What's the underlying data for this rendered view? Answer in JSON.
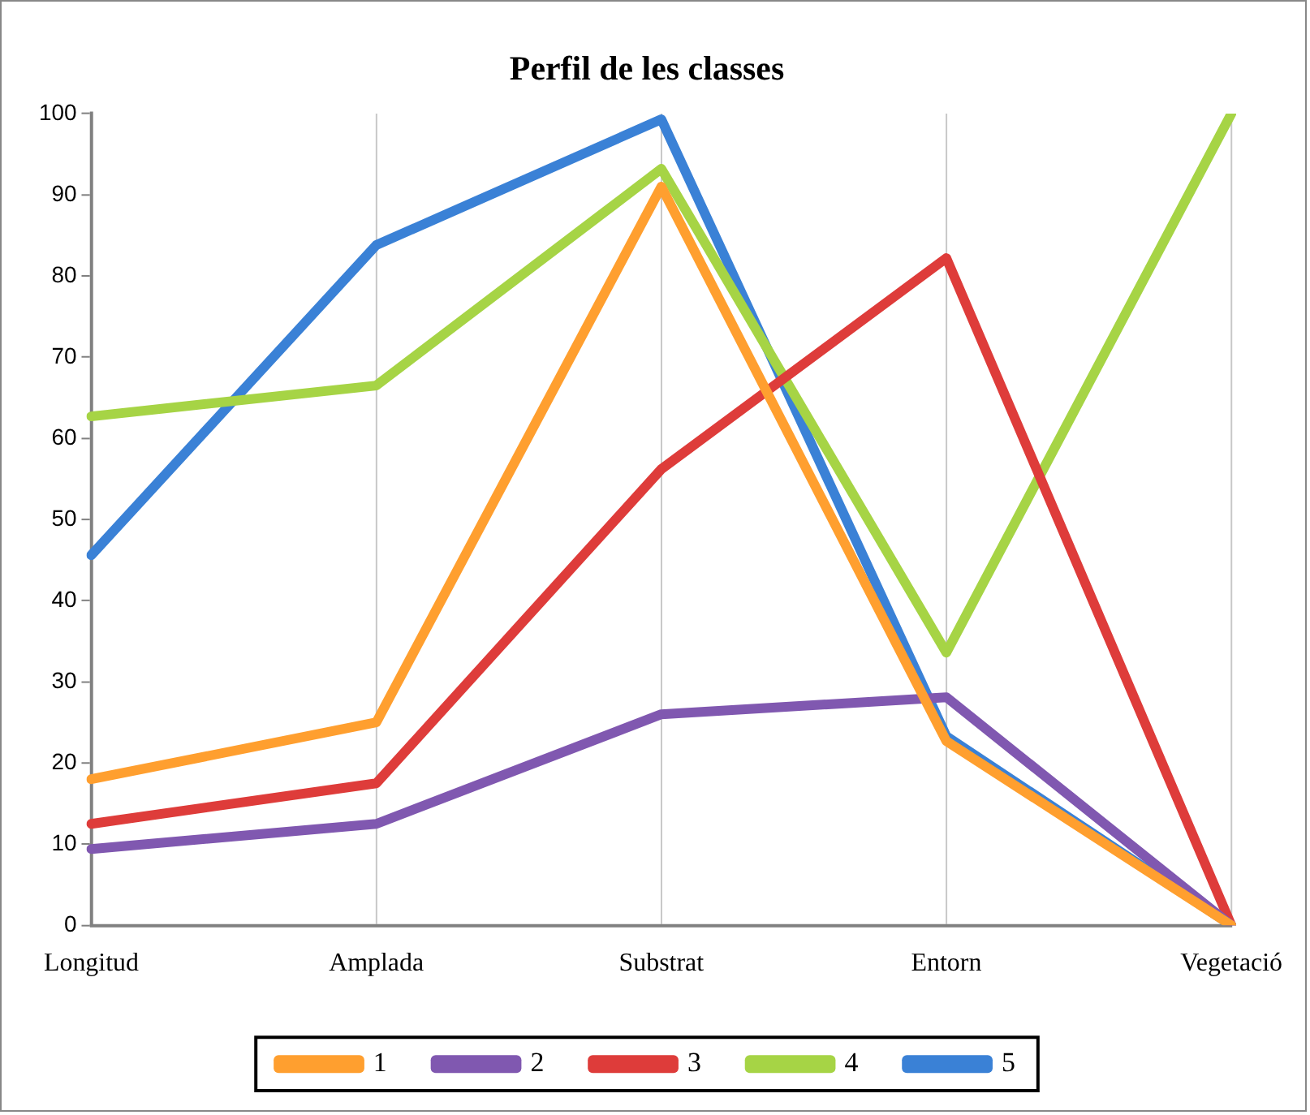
{
  "chart_data": {
    "type": "line",
    "title": "Perfil de les classes",
    "categories": [
      "Longitud",
      "Amplada",
      "Substrat",
      "Entorn",
      "Vegetació"
    ],
    "series": [
      {
        "name": "1",
        "color": "#ff9f2f",
        "values": [
          18,
          25,
          91,
          22.7,
          0
        ]
      },
      {
        "name": "2",
        "color": "#8058b0",
        "values": [
          9.4,
          12.5,
          26,
          28.1,
          0
        ]
      },
      {
        "name": "3",
        "color": "#de3c3a",
        "values": [
          12.5,
          17.5,
          56.2,
          82.2,
          0
        ]
      },
      {
        "name": "4",
        "color": "#a6d445",
        "values": [
          62.7,
          66.5,
          93.2,
          33.6,
          100
        ]
      },
      {
        "name": "5",
        "color": "#3a81d6",
        "values": [
          45.6,
          83.8,
          99.3,
          23.3,
          0
        ]
      }
    ],
    "ylim": [
      0,
      100
    ],
    "yticks": [
      0,
      10,
      20,
      30,
      40,
      50,
      60,
      70,
      80,
      90,
      100
    ],
    "grid": "x",
    "legend": "bottom",
    "marker": "none",
    "line_style": "solid"
  }
}
